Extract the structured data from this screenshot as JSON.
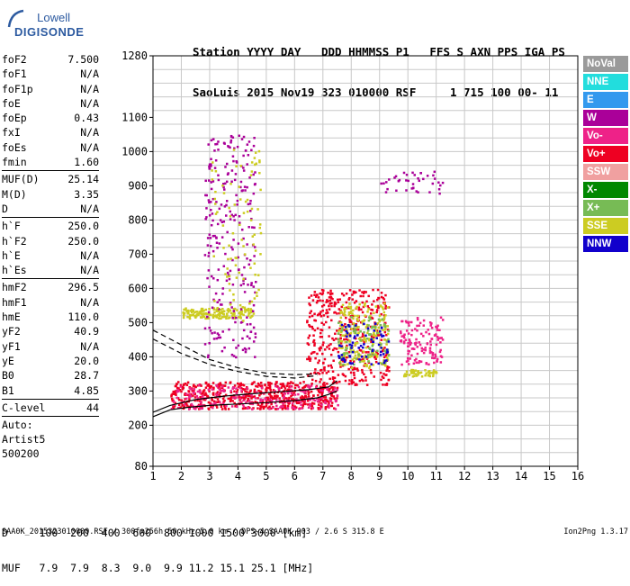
{
  "logo": {
    "brand": "Lowell",
    "product": "DIGISONDE"
  },
  "header": {
    "line1": "Station YYYY DAY   DDD HHMMSS P1   FFS S AXN PPS IGA PS",
    "line2": "SaoLuis 2015 Nov19 323 010000 RSF     1 715 100 00- 11"
  },
  "params_groups": [
    [
      {
        "label": "foF2",
        "value": "7.500"
      },
      {
        "label": "foF1",
        "value": "N/A"
      },
      {
        "label": "foF1p",
        "value": "N/A"
      },
      {
        "label": "foE",
        "value": "N/A"
      },
      {
        "label": "foEp",
        "value": "0.43"
      },
      {
        "label": "fxI",
        "value": "N/A"
      },
      {
        "label": "foEs",
        "value": "N/A"
      },
      {
        "label": "fmin",
        "value": "1.60"
      }
    ],
    [
      {
        "label": "MUF(D)",
        "value": "25.14"
      },
      {
        "label": "M(D)",
        "value": "3.35"
      },
      {
        "label": "D",
        "value": "N/A"
      }
    ],
    [
      {
        "label": "h`F",
        "value": "250.0"
      },
      {
        "label": "h`F2",
        "value": "250.0"
      },
      {
        "label": "h`E",
        "value": "N/A"
      },
      {
        "label": "h`Es",
        "value": "N/A"
      }
    ],
    [
      {
        "label": "hmF2",
        "value": "296.5"
      },
      {
        "label": "hmF1",
        "value": "N/A"
      },
      {
        "label": "hmE",
        "value": "110.0"
      },
      {
        "label": "yF2",
        "value": "40.9"
      },
      {
        "label": "yF1",
        "value": "N/A"
      },
      {
        "label": "yE",
        "value": "20.0"
      },
      {
        "label": "B0",
        "value": "28.7"
      },
      {
        "label": "B1",
        "value": "4.85"
      }
    ],
    [
      {
        "label": "C-level",
        "value": "44"
      }
    ]
  ],
  "auto": {
    "line1": "Auto:",
    "line2": "Artist5",
    "line3": "500200"
  },
  "legend": [
    {
      "label": "NoVal",
      "color": "#9a9a9a"
    },
    {
      "label": "NNE",
      "color": "#22dddd"
    },
    {
      "label": "E",
      "color": "#3399ee"
    },
    {
      "label": "W",
      "color": "#aa0099"
    },
    {
      "label": "Vo-",
      "color": "#ee2288"
    },
    {
      "label": "Vo+",
      "color": "#ee0022"
    },
    {
      "label": "SSW",
      "color": "#f0a0a0"
    },
    {
      "label": "X-",
      "color": "#008800"
    },
    {
      "label": "X+",
      "color": "#77bb55"
    },
    {
      "label": "SSE",
      "color": "#cccc22"
    },
    {
      "label": "NNW",
      "color": "#1100cc"
    }
  ],
  "muf_table": {
    "d_line": "D     100  200  400  600  800 1000 1500 3000 [km]",
    "muf_line": "MUF   7.9  7.9  8.3  9.0  9.9 11.2 15.1 25.1 [MHz]"
  },
  "footer": {
    "left": "SAA0K_2015323010000.RSF / 300fx256h 50 kHz 5.0 km / DPS-4 SAA0K 903 / 2.6 S 315.8 E",
    "right": "Ion2Png 1.3.17"
  },
  "chart_data": {
    "type": "scatter",
    "xlim": [
      1,
      16
    ],
    "ylim": [
      80,
      1280
    ],
    "x_ticks": [
      1,
      2,
      3,
      4,
      5,
      6,
      7,
      8,
      9,
      10,
      11,
      12,
      13,
      14,
      15,
      16
    ],
    "y_ticks_labeled": [
      80,
      200,
      300,
      400,
      500,
      600,
      700,
      800,
      900,
      1000,
      1100,
      1280
    ],
    "grid": true,
    "trace_clusters": [
      {
        "color": "Vo+",
        "f_range": [
          1.6,
          7.5
        ],
        "h_range": [
          250,
          330
        ],
        "count": 600
      },
      {
        "color": "Vo-",
        "f_range": [
          1.6,
          7.5
        ],
        "h_range": [
          250,
          320
        ],
        "count": 200
      },
      {
        "color": "SSE",
        "f_range": [
          2.0,
          4.5
        ],
        "h_range": [
          515,
          545
        ],
        "count": 160
      },
      {
        "color": "W",
        "f_range": [
          2.8,
          4.6
        ],
        "h_range": [
          400,
          1050
        ],
        "count": 260
      },
      {
        "color": "SSE",
        "f_range": [
          3.0,
          4.8
        ],
        "h_range": [
          500,
          1020
        ],
        "count": 90
      },
      {
        "color": "Vo+",
        "f_range": [
          6.4,
          9.3
        ],
        "h_range": [
          320,
          600
        ],
        "count": 420
      },
      {
        "color": "SSE",
        "f_range": [
          7.5,
          9.3
        ],
        "h_range": [
          370,
          560
        ],
        "count": 200
      },
      {
        "color": "X+",
        "f_range": [
          7.5,
          9.3
        ],
        "h_range": [
          380,
          520
        ],
        "count": 80
      },
      {
        "color": "NNW",
        "f_range": [
          7.5,
          9.3
        ],
        "h_range": [
          380,
          500
        ],
        "count": 70
      },
      {
        "color": "Vo-",
        "f_range": [
          9.7,
          11.2
        ],
        "h_range": [
          380,
          520
        ],
        "count": 130
      },
      {
        "color": "SSE",
        "f_range": [
          9.8,
          11.0
        ],
        "h_range": [
          345,
          365
        ],
        "count": 50
      },
      {
        "color": "W",
        "f_range": [
          9.0,
          11.2
        ],
        "h_range": [
          880,
          945
        ],
        "count": 40
      }
    ],
    "profile_curves": [
      {
        "style": "solid",
        "points": [
          [
            1,
            225
          ],
          [
            1.6,
            245
          ],
          [
            2.2,
            252
          ],
          [
            3,
            258
          ],
          [
            4,
            262
          ],
          [
            5,
            266
          ],
          [
            6,
            272
          ],
          [
            6.8,
            280
          ],
          [
            7.2,
            290
          ],
          [
            7.5,
            300
          ]
        ]
      },
      {
        "style": "solid",
        "points": [
          [
            1,
            238
          ],
          [
            1.6,
            258
          ],
          [
            2.5,
            275
          ],
          [
            3.5,
            285
          ],
          [
            4.5,
            292
          ],
          [
            5.5,
            298
          ],
          [
            6.5,
            304
          ],
          [
            7.2,
            312
          ],
          [
            7.5,
            330
          ]
        ]
      },
      {
        "style": "dashed",
        "points": [
          [
            1,
            478
          ],
          [
            2,
            435
          ],
          [
            3,
            392
          ],
          [
            4,
            368
          ],
          [
            5,
            352
          ],
          [
            6,
            348
          ],
          [
            6.8,
            350
          ]
        ]
      },
      {
        "style": "dashed",
        "points": [
          [
            1,
            452
          ],
          [
            2,
            410
          ],
          [
            3,
            378
          ],
          [
            4,
            357
          ],
          [
            5,
            343
          ],
          [
            6,
            338
          ],
          [
            6.8,
            345
          ]
        ]
      }
    ]
  }
}
